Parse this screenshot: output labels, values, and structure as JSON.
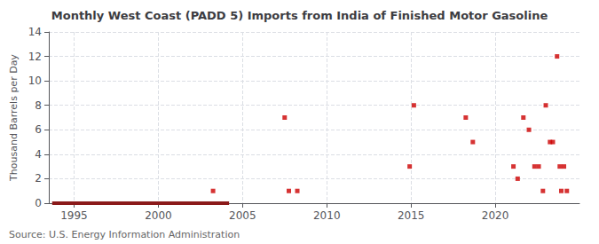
{
  "chart_data": {
    "type": "scatter",
    "title": "Monthly West Coast (PADD 5) Imports from India of Finished Motor Gasoline",
    "ylabel": "Thousand Barrels per Day",
    "annotation": "Source: U.S. Energy Information Administration",
    "xlim": [
      1993.5,
      2025.0
    ],
    "ylim": [
      0,
      14
    ],
    "xticks": [
      1995,
      2000,
      2005,
      2010,
      2015,
      2020
    ],
    "yticks": [
      0,
      2,
      4,
      6,
      8,
      10,
      12,
      14
    ],
    "grid": true,
    "series": [
      {
        "type": "line",
        "line_style": "solid",
        "color": "#8b1a1a",
        "x": [
          1993.7,
          2004.2
        ],
        "values": [
          0,
          0
        ]
      },
      {
        "type": "scatter",
        "marker": "square",
        "color": "#cc0000",
        "x": [
          2003.25,
          2007.5,
          2007.75,
          2008.25,
          2014.92,
          2015.17,
          2018.25,
          2018.67,
          2021.08,
          2021.33,
          2021.67,
          2022.0,
          2022.33,
          2022.58,
          2022.83,
          2023.0,
          2023.25,
          2023.42,
          2023.67,
          2023.83,
          2023.92,
          2024.08,
          2024.25
        ],
        "values": [
          1,
          7,
          1,
          1,
          3,
          8,
          7,
          5,
          3,
          2,
          7,
          6,
          3,
          3,
          1,
          8,
          5,
          5,
          12,
          3,
          1,
          3,
          1
        ]
      }
    ]
  }
}
